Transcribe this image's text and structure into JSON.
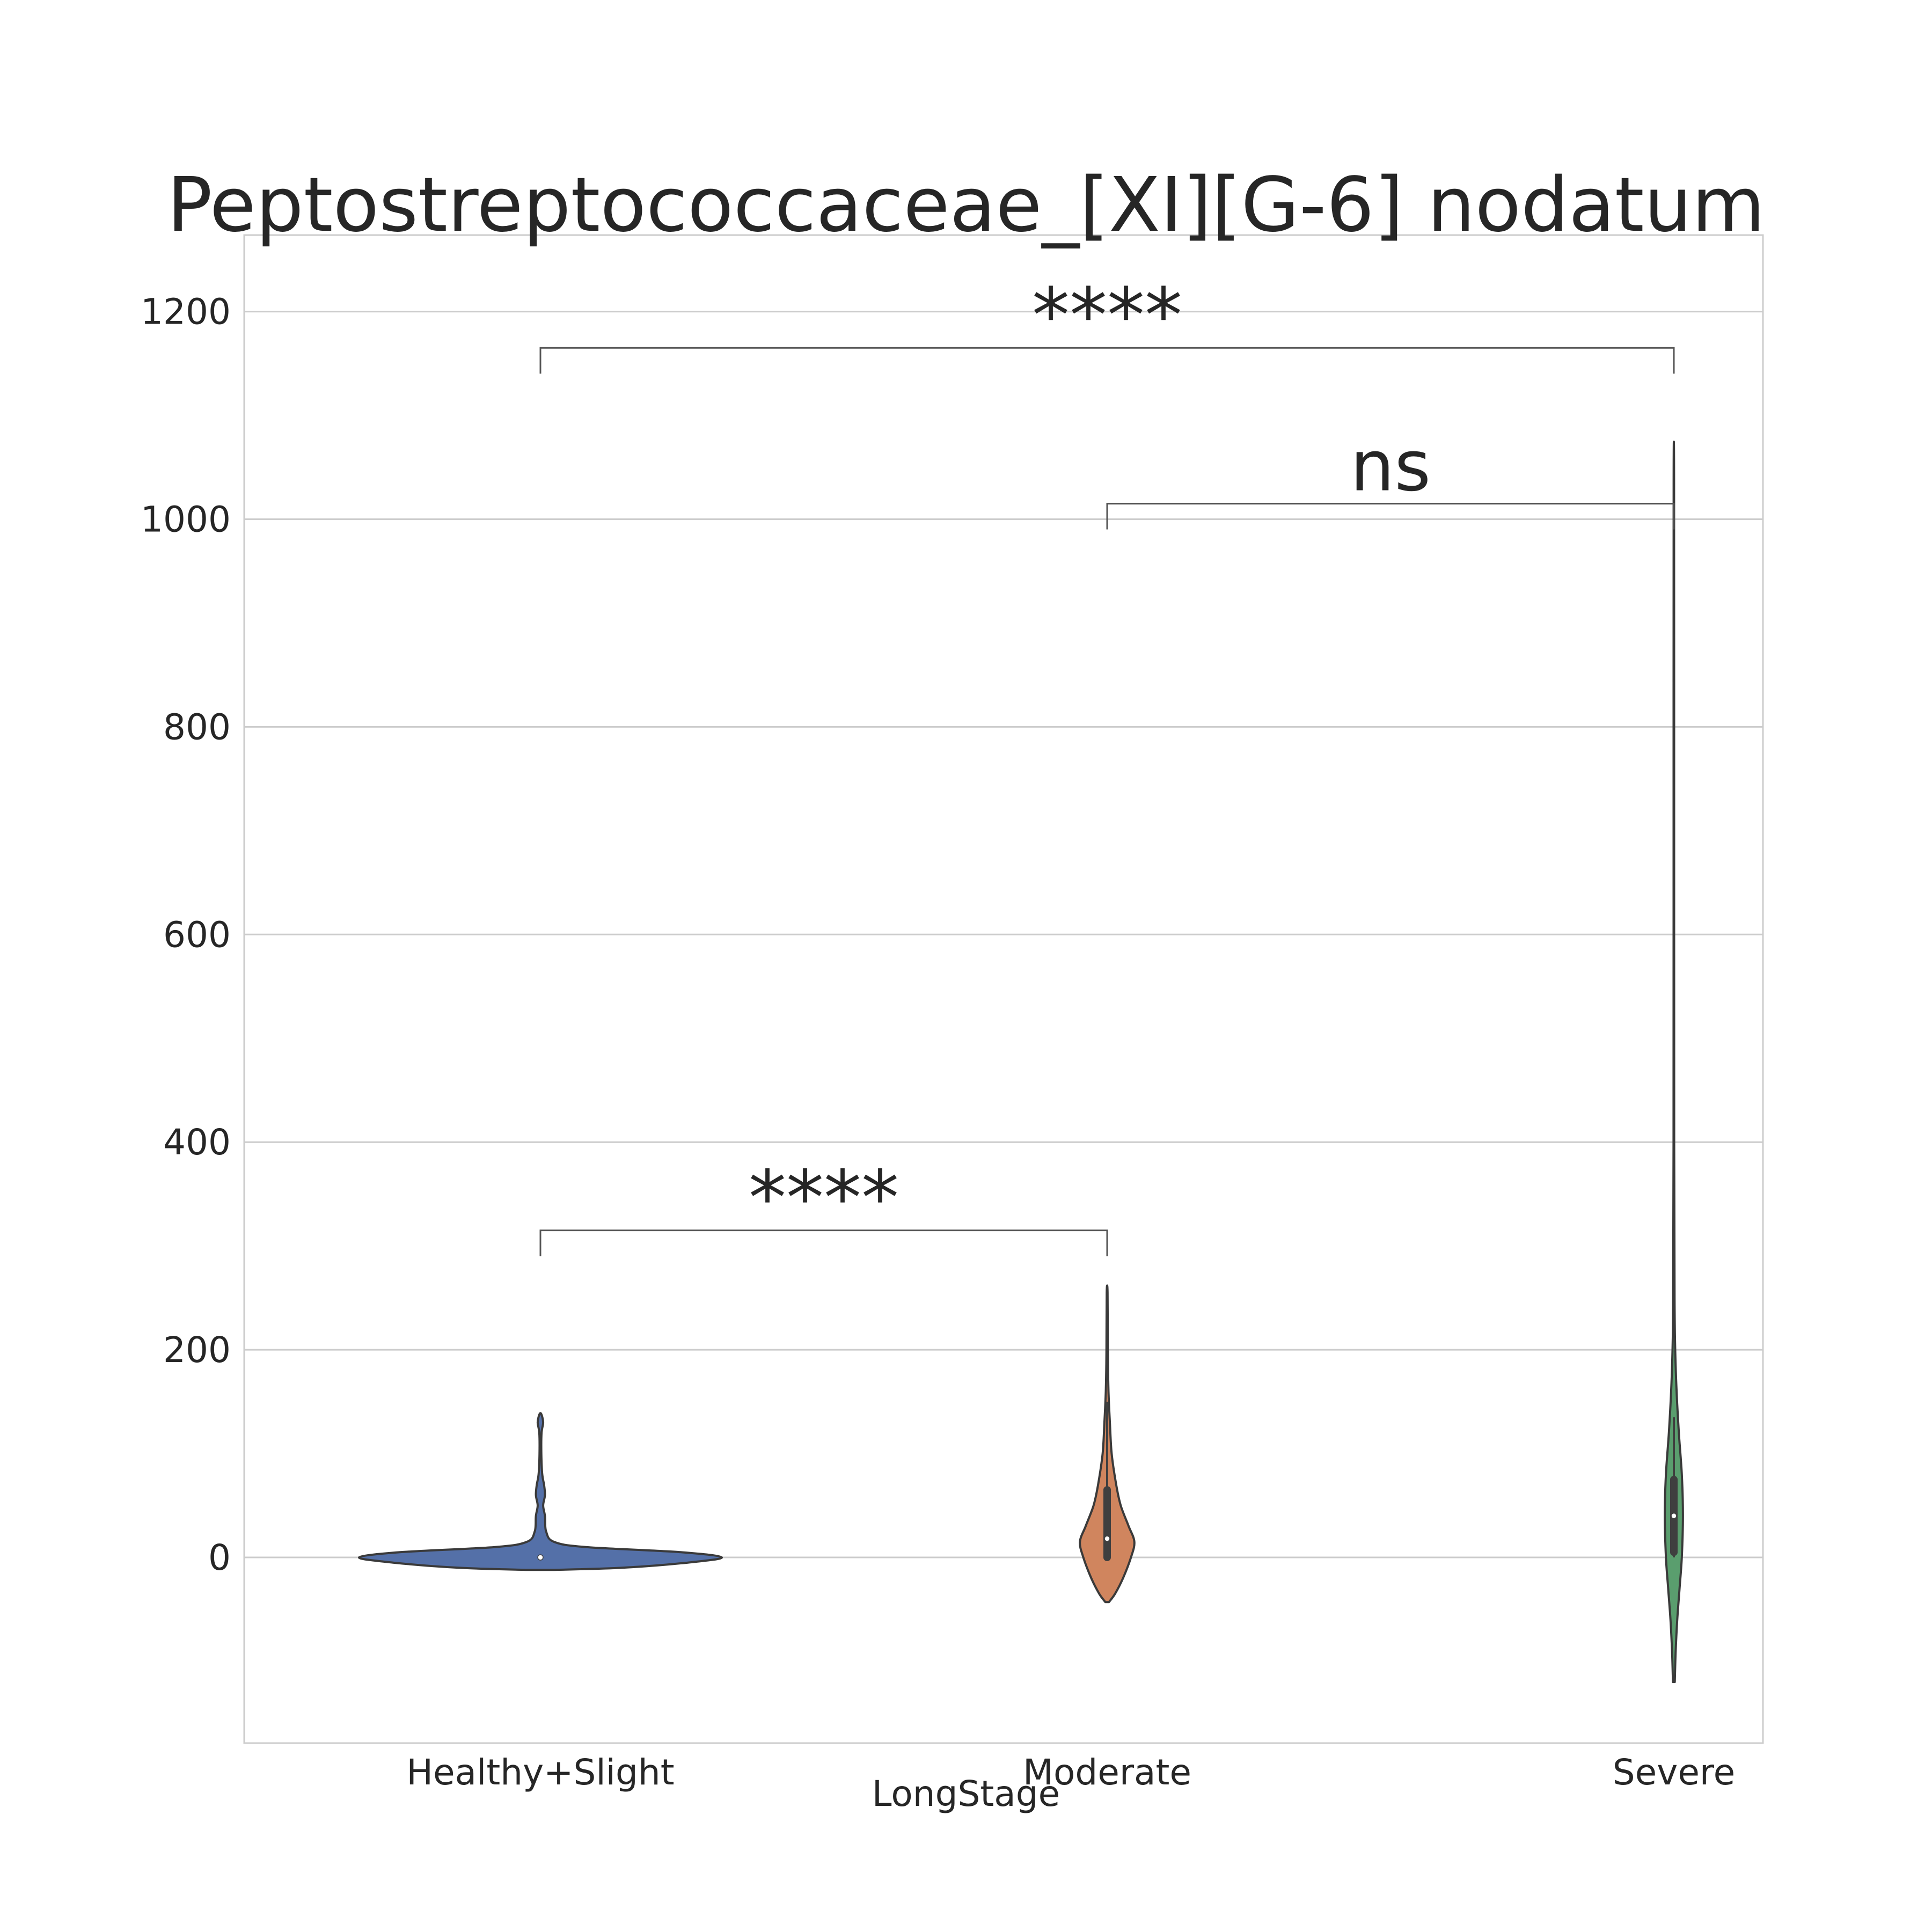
{
  "chart_data": {
    "type": "violin",
    "title": "Peptostreptococcaceae_[XI][G-6] nodatum",
    "xlabel": "LongStage",
    "ylabel": "",
    "categories": [
      "Healthy+Slight",
      "Moderate",
      "Severe"
    ],
    "ylim": [
      -180,
      1270
    ],
    "yticks": [
      0,
      200,
      400,
      600,
      800,
      1000,
      1200
    ],
    "grid": true,
    "legend": "none",
    "colors": [
      "#5470a8",
      "#d0855e",
      "#5a9e6e"
    ],
    "violins": [
      {
        "category": "Healthy+Slight",
        "color": "#5470a8",
        "median": 0,
        "q1": 0,
        "q3": 0,
        "whisker_low": 0,
        "whisker_high": 0,
        "profile": [
          {
            "y": -12,
            "w": 0.06
          },
          {
            "y": -10,
            "w": 0.36
          },
          {
            "y": -5,
            "w": 0.65
          },
          {
            "y": 0,
            "w": 0.8
          },
          {
            "y": 5,
            "w": 0.62
          },
          {
            "y": 10,
            "w": 0.2
          },
          {
            "y": 15,
            "w": 0.06
          },
          {
            "y": 25,
            "w": 0.025
          },
          {
            "y": 40,
            "w": 0.02
          },
          {
            "y": 50,
            "w": 0.012
          },
          {
            "y": 60,
            "w": 0.02
          },
          {
            "y": 70,
            "w": 0.016
          },
          {
            "y": 80,
            "w": 0.008
          },
          {
            "y": 100,
            "w": 0.004
          },
          {
            "y": 120,
            "w": 0.005
          },
          {
            "y": 130,
            "w": 0.012
          },
          {
            "y": 138,
            "w": 0.004
          }
        ]
      },
      {
        "category": "Moderate",
        "color": "#d0855e",
        "median": 18,
        "q1": 0,
        "q3": 65,
        "whisker_low": 0,
        "whisker_high": 150,
        "profile": [
          {
            "y": -43,
            "w": 0.008
          },
          {
            "y": -35,
            "w": 0.035
          },
          {
            "y": -20,
            "w": 0.07
          },
          {
            "y": 0,
            "w": 0.105
          },
          {
            "y": 15,
            "w": 0.12
          },
          {
            "y": 30,
            "w": 0.095
          },
          {
            "y": 50,
            "w": 0.06
          },
          {
            "y": 70,
            "w": 0.04
          },
          {
            "y": 100,
            "w": 0.02
          },
          {
            "y": 130,
            "w": 0.012
          },
          {
            "y": 160,
            "w": 0.006
          },
          {
            "y": 200,
            "w": 0.003
          },
          {
            "y": 255,
            "w": 0.002
          }
        ]
      },
      {
        "category": "Severe",
        "color": "#5a9e6e",
        "median": 40,
        "q1": 5,
        "q3": 75,
        "whisker_low": 0,
        "whisker_high": 135,
        "profile": [
          {
            "y": -120,
            "w": 0.004
          },
          {
            "y": -90,
            "w": 0.008
          },
          {
            "y": -60,
            "w": 0.015
          },
          {
            "y": -30,
            "w": 0.025
          },
          {
            "y": 0,
            "w": 0.035
          },
          {
            "y": 40,
            "w": 0.04
          },
          {
            "y": 80,
            "w": 0.035
          },
          {
            "y": 120,
            "w": 0.022
          },
          {
            "y": 160,
            "w": 0.012
          },
          {
            "y": 200,
            "w": 0.006
          },
          {
            "y": 250,
            "w": 0.003
          },
          {
            "y": 400,
            "w": 0.0015
          },
          {
            "y": 700,
            "w": 0.0012
          },
          {
            "y": 1033,
            "w": 0.001
          }
        ]
      }
    ],
    "annotations": [
      {
        "label": "****",
        "from": "Healthy+Slight",
        "to": "Severe",
        "y": 1165
      },
      {
        "label": "ns",
        "from": "Moderate",
        "to": "Severe",
        "y": 1015
      },
      {
        "label": "****",
        "from": "Healthy+Slight",
        "to": "Moderate",
        "y": 315
      }
    ]
  }
}
